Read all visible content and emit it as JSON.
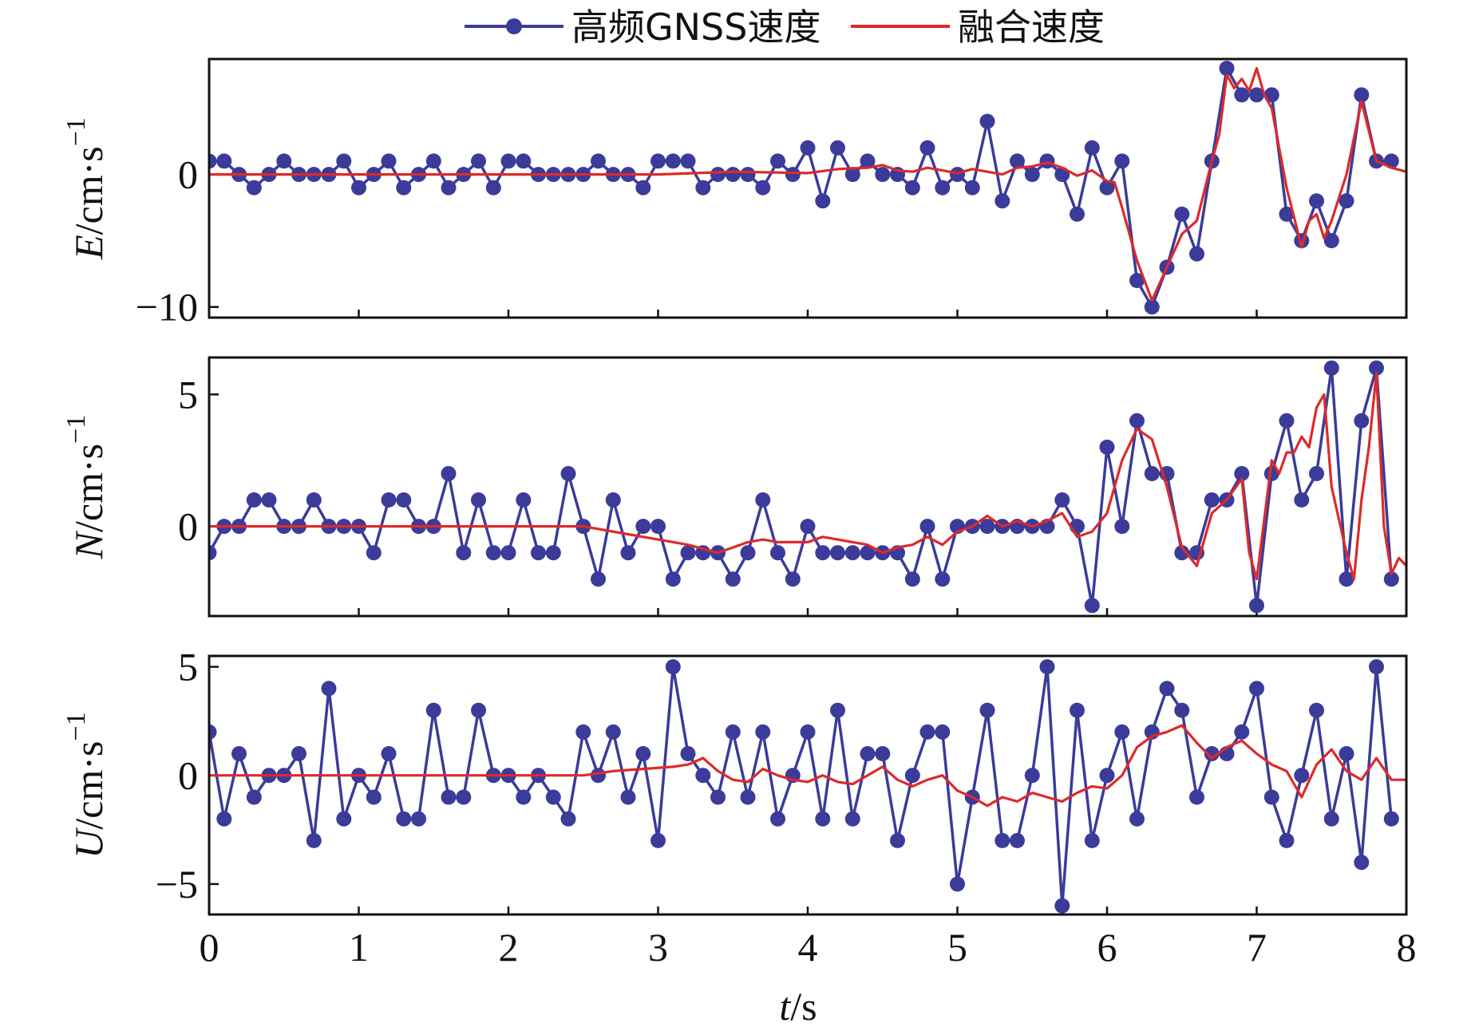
{
  "legend": {
    "gnss_label": "高频GNSS速度",
    "fused_label": "融合速度"
  },
  "axes": {
    "x_var": "t",
    "x_unit": "/s",
    "unit_text": "/cm·s",
    "unit_exp": "−1"
  },
  "colors": {
    "gnss": "#3b3b9a",
    "fused": "#dd2a2a"
  },
  "chart_data": {
    "type": "line",
    "xlim": [
      0,
      8
    ],
    "xticks": [
      "0",
      "1",
      "2",
      "3",
      "4",
      "5",
      "6",
      "7",
      "8"
    ],
    "panels": [
      {
        "component": "E",
        "ylim": [
          -10.8,
          8.7
        ],
        "yticks": [
          {
            "value": 0,
            "label": "0"
          },
          {
            "value": -10,
            "label": "−10"
          }
        ],
        "series": [
          {
            "name": "高频GNSS速度",
            "x": [
              0,
              0.1,
              0.2,
              0.3,
              0.4,
              0.5,
              0.6,
              0.7,
              0.8,
              0.9,
              1.0,
              1.1,
              1.2,
              1.3,
              1.4,
              1.5,
              1.6,
              1.7,
              1.8,
              1.9,
              2.0,
              2.1,
              2.2,
              2.3,
              2.4,
              2.5,
              2.6,
              2.7,
              2.8,
              2.9,
              3.0,
              3.1,
              3.2,
              3.3,
              3.4,
              3.5,
              3.6,
              3.7,
              3.8,
              3.9,
              4.0,
              4.1,
              4.2,
              4.3,
              4.4,
              4.5,
              4.6,
              4.7,
              4.8,
              4.9,
              5.0,
              5.1,
              5.2,
              5.3,
              5.4,
              5.5,
              5.6,
              5.7,
              5.8,
              5.9,
              6.0,
              6.1,
              6.2,
              6.3,
              6.4,
              6.5,
              6.6,
              6.7,
              6.8,
              6.9,
              7.0,
              7.1,
              7.2,
              7.3,
              7.4,
              7.5,
              7.6,
              7.7,
              7.8,
              7.9
            ],
            "values": [
              1,
              1,
              0,
              -1,
              0,
              1,
              0,
              0,
              0,
              1,
              -1,
              0,
              1,
              -1,
              0,
              1,
              -1,
              0,
              1,
              -1,
              1,
              1,
              0,
              0,
              0,
              0,
              1,
              0,
              0,
              -1,
              1,
              1,
              1,
              -1,
              0,
              0,
              0,
              -1,
              1,
              0,
              2,
              -2,
              2,
              0,
              1,
              0,
              0,
              -1,
              2,
              -1,
              0,
              -1,
              4,
              -2,
              1,
              0,
              1,
              0,
              -3,
              2,
              -1,
              1,
              -8,
              -10,
              -7,
              -3,
              -6,
              1,
              8,
              6,
              6,
              6,
              -3,
              -5,
              -2,
              -5,
              -2,
              6,
              1,
              1
            ]
          },
          {
            "name": "融合速度",
            "x": [
              0,
              2.0,
              3.0,
              3.5,
              4.0,
              4.2,
              4.4,
              4.5,
              4.6,
              4.7,
              4.8,
              4.9,
              5.0,
              5.1,
              5.2,
              5.3,
              5.4,
              5.5,
              5.6,
              5.7,
              5.8,
              5.9,
              6.0,
              6.05,
              6.1,
              6.2,
              6.3,
              6.4,
              6.5,
              6.6,
              6.7,
              6.75,
              6.8,
              6.85,
              6.9,
              6.95,
              7.0,
              7.05,
              7.1,
              7.2,
              7.3,
              7.35,
              7.4,
              7.45,
              7.5,
              7.6,
              7.7,
              7.8,
              7.9,
              8.0
            ],
            "values": [
              0,
              0,
              0,
              0.2,
              0.1,
              0.4,
              0.5,
              0.7,
              0.3,
              0.2,
              0.5,
              0.3,
              0.1,
              0.4,
              0.2,
              0,
              0.5,
              0.6,
              0.9,
              0.5,
              -0.1,
              0.3,
              -0.5,
              -0.6,
              -2.5,
              -6.5,
              -9.5,
              -7,
              -4.5,
              -3.5,
              1,
              3,
              7.5,
              6.5,
              7.2,
              6.3,
              8,
              6,
              5,
              -1,
              -5.5,
              -3.5,
              -3,
              -4.8,
              -3.5,
              0,
              5.5,
              1,
              0.5,
              0.2
            ]
          }
        ]
      },
      {
        "component": "N",
        "ylim": [
          -3.4,
          6.4
        ],
        "yticks": [
          {
            "value": 0,
            "label": "0"
          },
          {
            "value": 5,
            "label": "5"
          }
        ],
        "series": [
          {
            "name": "高频GNSS速度",
            "x": [
              0,
              0.1,
              0.2,
              0.3,
              0.4,
              0.5,
              0.6,
              0.7,
              0.8,
              0.9,
              1.0,
              1.1,
              1.2,
              1.3,
              1.4,
              1.5,
              1.6,
              1.7,
              1.8,
              1.9,
              2.0,
              2.1,
              2.2,
              2.3,
              2.4,
              2.5,
              2.6,
              2.7,
              2.8,
              2.9,
              3.0,
              3.1,
              3.2,
              3.3,
              3.4,
              3.5,
              3.6,
              3.7,
              3.8,
              3.9,
              4.0,
              4.1,
              4.2,
              4.3,
              4.4,
              4.5,
              4.6,
              4.7,
              4.8,
              4.9,
              5.0,
              5.1,
              5.2,
              5.3,
              5.4,
              5.5,
              5.6,
              5.7,
              5.8,
              5.9,
              6.0,
              6.1,
              6.2,
              6.3,
              6.4,
              6.5,
              6.6,
              6.7,
              6.8,
              6.9,
              7.0,
              7.1,
              7.2,
              7.3,
              7.4,
              7.5,
              7.6,
              7.7,
              7.8,
              7.9
            ],
            "values": [
              -1,
              0,
              0,
              1,
              1,
              0,
              0,
              1,
              0,
              0,
              0,
              -1,
              1,
              1,
              0,
              0,
              2,
              -1,
              1,
              -1,
              -1,
              1,
              -1,
              -1,
              2,
              0,
              -2,
              1,
              -1,
              0,
              0,
              -2,
              -1,
              -1,
              -1,
              -2,
              -1,
              1,
              -1,
              -2,
              0,
              -1,
              -1,
              -1,
              -1,
              -1,
              -1,
              -2,
              0,
              -2,
              0,
              0,
              0,
              0,
              0,
              0,
              0,
              1,
              0,
              -3,
              3,
              0,
              4,
              2,
              2,
              -1,
              -1,
              1,
              1,
              2,
              -3,
              2,
              4,
              1,
              2,
              6,
              -2,
              4,
              6,
              -2
            ]
          },
          {
            "name": "融合速度",
            "x": [
              0,
              2.5,
              2.8,
              3.0,
              3.2,
              3.4,
              3.5,
              3.6,
              3.7,
              3.8,
              4.0,
              4.1,
              4.2,
              4.3,
              4.4,
              4.5,
              4.6,
              4.7,
              4.8,
              4.9,
              5.0,
              5.1,
              5.2,
              5.3,
              5.4,
              5.5,
              5.6,
              5.7,
              5.8,
              5.9,
              6.0,
              6.1,
              6.2,
              6.3,
              6.4,
              6.5,
              6.6,
              6.7,
              6.8,
              6.9,
              6.95,
              7.0,
              7.1,
              7.15,
              7.2,
              7.25,
              7.3,
              7.35,
              7.4,
              7.45,
              7.5,
              7.6,
              7.65,
              7.7,
              7.75,
              7.8,
              7.85,
              7.9,
              7.95,
              8.0
            ],
            "values": [
              0,
              0,
              -0.3,
              -0.5,
              -0.7,
              -1,
              -0.8,
              -0.6,
              -0.5,
              -0.6,
              -0.6,
              -0.4,
              -0.5,
              -0.6,
              -0.7,
              -1,
              -0.8,
              -0.7,
              -0.4,
              -0.7,
              -0.2,
              0,
              0.4,
              0,
              0.2,
              0,
              0.2,
              0.5,
              -0.4,
              -0.2,
              0.5,
              2.5,
              3.7,
              3.3,
              1.5,
              -0.8,
              -1.5,
              0.5,
              1,
              1.8,
              -1,
              -2,
              2.5,
              2,
              2.8,
              2.8,
              3.4,
              3,
              4.5,
              5,
              1.5,
              -1,
              -2,
              1,
              3,
              5.8,
              0,
              -1.8,
              -1.2,
              -1.5
            ]
          }
        ]
      },
      {
        "component": "U",
        "ylim": [
          -6.4,
          5.5
        ],
        "yticks": [
          {
            "value": 0,
            "label": "0"
          },
          {
            "value": 5,
            "label": "5"
          },
          {
            "value": -5,
            "label": "−5"
          }
        ],
        "series": [
          {
            "name": "高频GNSS速度",
            "x": [
              0,
              0.1,
              0.2,
              0.3,
              0.4,
              0.5,
              0.6,
              0.7,
              0.8,
              0.9,
              1.0,
              1.1,
              1.2,
              1.3,
              1.4,
              1.5,
              1.6,
              1.7,
              1.8,
              1.9,
              2.0,
              2.1,
              2.2,
              2.3,
              2.4,
              2.5,
              2.6,
              2.7,
              2.8,
              2.9,
              3.0,
              3.1,
              3.2,
              3.3,
              3.4,
              3.5,
              3.6,
              3.7,
              3.8,
              3.9,
              4.0,
              4.1,
              4.2,
              4.3,
              4.4,
              4.5,
              4.6,
              4.7,
              4.8,
              4.9,
              5.0,
              5.1,
              5.2,
              5.3,
              5.4,
              5.5,
              5.6,
              5.7,
              5.8,
              5.9,
              6.0,
              6.1,
              6.2,
              6.3,
              6.4,
              6.5,
              6.6,
              6.7,
              6.8,
              6.9,
              7.0,
              7.1,
              7.2,
              7.3,
              7.4,
              7.5,
              7.6,
              7.7,
              7.8,
              7.9
            ],
            "values": [
              2,
              -2,
              1,
              -1,
              0,
              0,
              1,
              -3,
              4,
              -2,
              0,
              -1,
              1,
              -2,
              -2,
              3,
              -1,
              -1,
              3,
              0,
              0,
              -1,
              0,
              -1,
              -2,
              2,
              0,
              2,
              -1,
              1,
              -3,
              5,
              1,
              0,
              -1,
              2,
              -1,
              2,
              -2,
              0,
              2,
              -2,
              3,
              -2,
              1,
              1,
              -3,
              0,
              2,
              2,
              -5,
              -1,
              3,
              -3,
              -3,
              0,
              5,
              -6,
              3,
              -3,
              0,
              2,
              -2,
              2,
              4,
              3,
              -1,
              1,
              1,
              2,
              4,
              -1,
              -3,
              0,
              3,
              -2,
              1,
              -4,
              5,
              -2
            ]
          },
          {
            "name": "融合速度",
            "x": [
              0,
              2.5,
              2.7,
              2.9,
              3.1,
              3.2,
              3.3,
              3.4,
              3.5,
              3.6,
              3.7,
              3.8,
              3.9,
              4.0,
              4.1,
              4.2,
              4.3,
              4.4,
              4.5,
              4.6,
              4.7,
              4.8,
              4.9,
              5.0,
              5.1,
              5.2,
              5.3,
              5.4,
              5.5,
              5.6,
              5.7,
              5.8,
              5.9,
              6.0,
              6.1,
              6.2,
              6.3,
              6.4,
              6.5,
              6.6,
              6.7,
              6.8,
              6.9,
              7.0,
              7.1,
              7.2,
              7.3,
              7.4,
              7.5,
              7.6,
              7.7,
              7.8,
              7.9,
              8.0
            ],
            "values": [
              0,
              0,
              0.2,
              0.3,
              0.4,
              0.5,
              0.8,
              0.2,
              -0.2,
              -0.3,
              0.3,
              0,
              -0.2,
              -0.3,
              0,
              -0.3,
              -0.4,
              0,
              0.4,
              -0.2,
              -0.5,
              -0.2,
              0,
              -0.7,
              -1,
              -1.4,
              -1,
              -1.2,
              -0.8,
              -1,
              -1.2,
              -0.8,
              -0.5,
              -0.6,
              0,
              1.3,
              1.8,
              2,
              2.3,
              1.5,
              0.8,
              1.3,
              1.6,
              1,
              0.5,
              0.2,
              -1,
              0.5,
              1.2,
              0.2,
              -0.2,
              0.8,
              -0.2,
              -0.2
            ]
          }
        ]
      }
    ]
  }
}
